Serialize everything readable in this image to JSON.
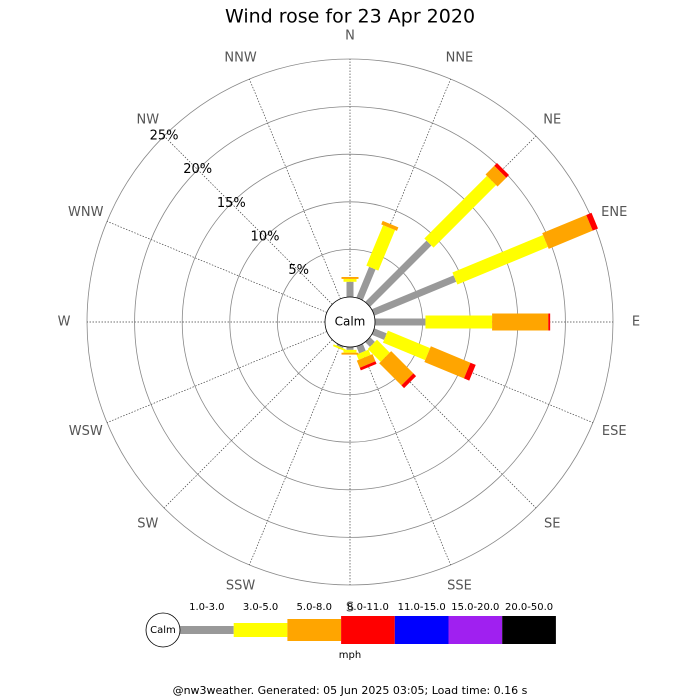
{
  "chart_data": {
    "type": "windrose",
    "title": "Wind rose for 23 Apr 2020",
    "categories": [
      "N",
      "NNE",
      "NE",
      "ENE",
      "E",
      "ESE",
      "SE",
      "SSE",
      "S",
      "SSW",
      "SW",
      "WSW",
      "W",
      "WNW",
      "NW",
      "NNW"
    ],
    "series": [
      {
        "name": "1.0-3.0",
        "color": "#999999",
        "values": [
          1.6,
          3.5,
          9.1,
          9.3,
          5.3,
          1.4,
          0.7,
          0.8,
          0.3,
          0.2,
          0,
          0,
          0,
          0,
          0,
          0
        ]
      },
      {
        "name": "3.0-5.0",
        "color": "#ffff00",
        "values": [
          0.3,
          4.6,
          9.3,
          10.3,
          7.0,
          4.8,
          1.9,
          0.6,
          0.3,
          0.2,
          0,
          0,
          0,
          0,
          0,
          0
        ]
      },
      {
        "name": "5.0-8.0",
        "color": "#ffa500",
        "values": [
          0.2,
          0.4,
          1.3,
          5.0,
          5.9,
          4.5,
          3.3,
          0.8,
          0.2,
          0,
          0,
          0,
          0,
          0,
          0,
          0
        ]
      },
      {
        "name": "8.0-11.0",
        "color": "#ff0000",
        "values": [
          0,
          0,
          0.4,
          0.6,
          0.2,
          0.6,
          0.4,
          0.3,
          0,
          0,
          0,
          0,
          0,
          0,
          0,
          0
        ]
      },
      {
        "name": "11.0-15.0",
        "color": "#0000ff",
        "values": [
          0,
          0,
          0,
          0,
          0,
          0,
          0,
          0,
          0,
          0,
          0,
          0,
          0,
          0,
          0,
          0
        ]
      },
      {
        "name": "15.0-20.0",
        "color": "#a020f0",
        "values": [
          0,
          0,
          0,
          0,
          0,
          0,
          0,
          0,
          0,
          0,
          0,
          0,
          0,
          0,
          0,
          0
        ]
      },
      {
        "name": "20.0-50.0",
        "color": "#000000",
        "values": [
          0,
          0,
          0,
          0,
          0,
          0,
          0,
          0,
          0,
          0,
          0,
          0,
          0,
          0,
          0,
          0
        ]
      }
    ],
    "rlim": [
      0,
      25
    ],
    "rticks": [
      {
        "value": 5,
        "label": "5%"
      },
      {
        "value": 10,
        "label": "10%"
      },
      {
        "value": 15,
        "label": "15%"
      },
      {
        "value": 20,
        "label": "20%"
      },
      {
        "value": 25,
        "label": "25%"
      }
    ],
    "grid": true,
    "calm_label": "Calm",
    "legend_unit": "mph",
    "footer": "@nw3weather. Generated: 05 Jun 2025 03:05; Load time: 0.16 s"
  }
}
